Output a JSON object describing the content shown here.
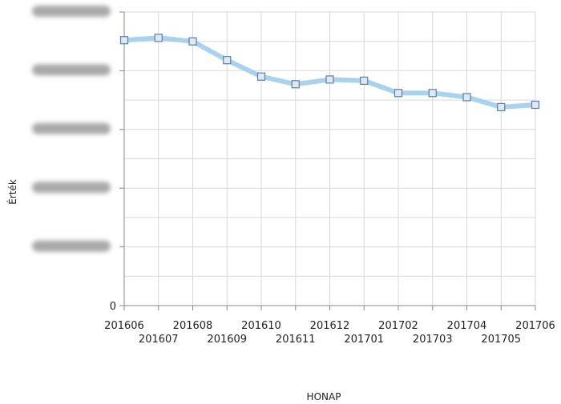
{
  "chart_data": {
    "type": "line",
    "title": "",
    "xlabel": "HONAP",
    "ylabel": "Érték",
    "categories": [
      "201606",
      "201607",
      "201608",
      "201609",
      "201610",
      "201611",
      "201612",
      "201701",
      "201702",
      "201703",
      "201704",
      "201705",
      "201706"
    ],
    "series": [
      {
        "values": [
          452,
          456,
          450,
          418,
          390,
          377,
          385,
          383,
          362,
          362,
          355,
          338,
          342
        ]
      }
    ],
    "ylim": [
      0,
      500
    ],
    "yticks": [
      {
        "value": 0,
        "label": "0"
      },
      {
        "value": 100,
        "label": ""
      },
      {
        "value": 200,
        "label": ""
      },
      {
        "value": 300,
        "label": ""
      },
      {
        "value": 400,
        "label": ""
      },
      {
        "value": 500,
        "label": ""
      }
    ],
    "grid": true,
    "legend": "none",
    "colors": {
      "line": "#a8d2ee",
      "marker_stroke": "#5a7fa8",
      "marker_fill": "#dfe9f3",
      "grid": "#d9d9d9",
      "axis": "#888888"
    }
  }
}
